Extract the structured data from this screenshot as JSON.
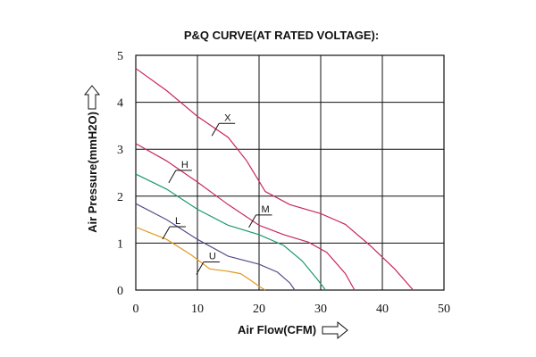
{
  "chart_data": {
    "type": "line",
    "title": "P&Q CURVE(AT RATED VOLTAGE):",
    "xlabel": "Air Flow(CFM)",
    "ylabel": "Air Pressure(mmH2O)",
    "xlim": [
      0,
      50
    ],
    "ylim": [
      0,
      5
    ],
    "xticks": [
      0,
      10,
      20,
      30,
      40,
      50
    ],
    "yticks": [
      0,
      1,
      2,
      3,
      4,
      5
    ],
    "grid": true,
    "series": [
      {
        "name": "X",
        "color": "#c8285a",
        "points": [
          [
            0,
            4.72
          ],
          [
            5,
            4.25
          ],
          [
            10,
            3.7
          ],
          [
            15,
            3.25
          ],
          [
            18,
            2.75
          ],
          [
            21,
            2.1
          ],
          [
            25,
            1.82
          ],
          [
            30,
            1.63
          ],
          [
            34,
            1.4
          ],
          [
            38,
            0.95
          ],
          [
            42,
            0.45
          ],
          [
            45,
            0.0
          ]
        ]
      },
      {
        "name": "H",
        "color": "#c8285a",
        "points": [
          [
            0,
            3.12
          ],
          [
            5,
            2.75
          ],
          [
            10,
            2.3
          ],
          [
            15,
            1.82
          ],
          [
            20,
            1.38
          ],
          [
            24,
            1.18
          ],
          [
            28,
            1.02
          ],
          [
            31,
            0.8
          ],
          [
            34,
            0.35
          ],
          [
            35.5,
            0.0
          ]
        ]
      },
      {
        "name": "M",
        "color": "#1a9a6c",
        "points": [
          [
            0,
            2.47
          ],
          [
            5,
            2.15
          ],
          [
            10,
            1.72
          ],
          [
            15,
            1.38
          ],
          [
            20,
            1.18
          ],
          [
            24,
            0.95
          ],
          [
            27,
            0.62
          ],
          [
            29.5,
            0.22
          ],
          [
            30.8,
            0.0
          ]
        ]
      },
      {
        "name": "L",
        "color": "#5a4a8a",
        "points": [
          [
            0,
            1.84
          ],
          [
            5,
            1.5
          ],
          [
            10,
            1.08
          ],
          [
            15,
            0.72
          ],
          [
            20,
            0.55
          ],
          [
            23,
            0.38
          ],
          [
            25,
            0.15
          ],
          [
            25.8,
            0.0
          ]
        ]
      },
      {
        "name": "U",
        "color": "#e09a20",
        "points": [
          [
            0,
            1.34
          ],
          [
            5,
            1.08
          ],
          [
            9,
            0.75
          ],
          [
            12,
            0.45
          ],
          [
            15,
            0.4
          ],
          [
            17,
            0.35
          ],
          [
            18.5,
            0.22
          ],
          [
            20,
            0.08
          ],
          [
            21,
            0.0
          ]
        ]
      }
    ],
    "labels": [
      {
        "text": "X",
        "x": 13.5,
        "y": 3.55
      },
      {
        "text": "H",
        "x": 6.5,
        "y": 2.55
      },
      {
        "text": "M",
        "x": 19.5,
        "y": 1.6
      },
      {
        "text": "L",
        "x": 5.5,
        "y": 1.35
      },
      {
        "text": "U",
        "x": 11,
        "y": 0.6
      }
    ]
  }
}
